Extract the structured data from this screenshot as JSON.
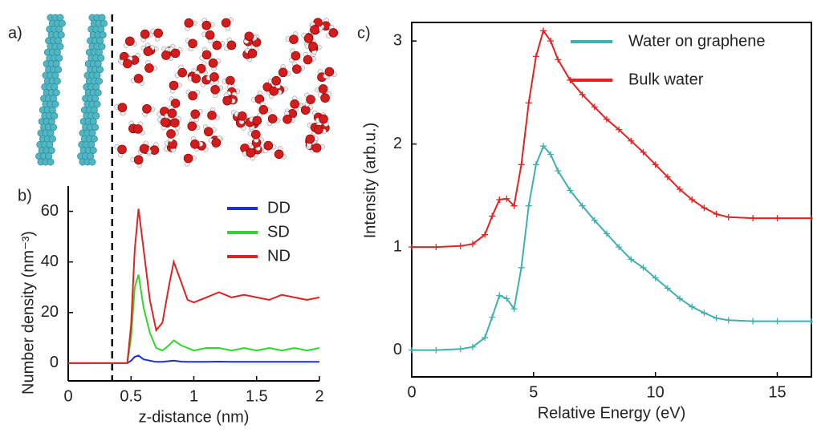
{
  "figure": {
    "panel_a_label": "a)"
  },
  "chart_data": [
    {
      "type": "line",
      "panel_label": "b)",
      "xlabel": "z-distance (nm)",
      "ylabel": "Number density (nm⁻³)",
      "xlim": [
        0,
        2
      ],
      "ylim": [
        -7,
        70
      ],
      "xticks": [
        0,
        0.5,
        1,
        1.5,
        2
      ],
      "yticks": [
        0,
        20,
        40,
        60
      ],
      "frame": "left-bottom",
      "legend": "upper right",
      "vline": 0.35,
      "x": [
        0,
        0.2,
        0.4,
        0.47,
        0.5,
        0.53,
        0.56,
        0.6,
        0.65,
        0.7,
        0.75,
        0.8,
        0.84,
        0.9,
        0.95,
        1.0,
        1.1,
        1.2,
        1.3,
        1.4,
        1.5,
        1.6,
        1.7,
        1.8,
        1.9,
        2.0
      ],
      "series": [
        {
          "name": "DD",
          "color": "#1f2fd6",
          "values": [
            0,
            0,
            0,
            0,
            1,
            2.5,
            3,
            1.5,
            1,
            0.5,
            0.5,
            0.8,
            1,
            0.6,
            0.5,
            0.5,
            0.5,
            0.6,
            0.5,
            0.5,
            0.5,
            0.5,
            0.5,
            0.5,
            0.5,
            0.5
          ]
        },
        {
          "name": "SD",
          "color": "#2ed62e",
          "values": [
            0,
            0,
            0,
            0,
            10,
            30,
            35,
            22,
            12,
            6,
            5,
            7,
            9,
            7,
            6,
            5,
            6,
            6,
            5,
            6,
            5,
            6,
            5,
            6,
            5,
            6
          ]
        },
        {
          "name": "ND",
          "color": "#e02222",
          "values": [
            0,
            0,
            0,
            0,
            15,
            45,
            61,
            45,
            25,
            13,
            16,
            30,
            40,
            32,
            25,
            24,
            26,
            28,
            26,
            27,
            26,
            25,
            27,
            26,
            25,
            26
          ]
        }
      ]
    },
    {
      "type": "line",
      "panel_label": "c)",
      "xlabel": "Relative Energy (eV)",
      "ylabel": "Intensity (arb.u.)",
      "xlim": [
        0,
        16.4
      ],
      "ylim": [
        -0.26,
        3.18
      ],
      "xticks": [
        0,
        5,
        10,
        15
      ],
      "yticks": [
        0,
        1,
        2,
        3
      ],
      "frame": "box",
      "legend": "upper right",
      "markers": "plus",
      "x": [
        0,
        1,
        2,
        2.5,
        3,
        3.3,
        3.6,
        3.9,
        4.2,
        4.5,
        4.8,
        5.1,
        5.4,
        5.7,
        6,
        6.5,
        7,
        7.5,
        8,
        8.5,
        9,
        9.5,
        10,
        10.5,
        11,
        11.5,
        12,
        12.5,
        13,
        14,
        15,
        16.4
      ],
      "series": [
        {
          "name": "Water on graphene",
          "color": "#3fb0b0",
          "values": [
            0,
            0,
            0.01,
            0.03,
            0.12,
            0.32,
            0.53,
            0.5,
            0.4,
            0.8,
            1.4,
            1.8,
            1.98,
            1.9,
            1.74,
            1.55,
            1.4,
            1.26,
            1.13,
            1.0,
            0.88,
            0.8,
            0.7,
            0.6,
            0.5,
            0.42,
            0.36,
            0.31,
            0.29,
            0.28,
            0.28,
            0.28
          ]
        },
        {
          "name": "Bulk water",
          "color": "#e82020",
          "values": [
            1.0,
            1.0,
            1.01,
            1.03,
            1.12,
            1.3,
            1.46,
            1.47,
            1.4,
            1.8,
            2.4,
            2.85,
            3.1,
            3.0,
            2.82,
            2.62,
            2.48,
            2.36,
            2.24,
            2.14,
            2.03,
            1.92,
            1.8,
            1.68,
            1.56,
            1.46,
            1.38,
            1.32,
            1.29,
            1.28,
            1.28,
            1.28
          ]
        }
      ]
    }
  ]
}
